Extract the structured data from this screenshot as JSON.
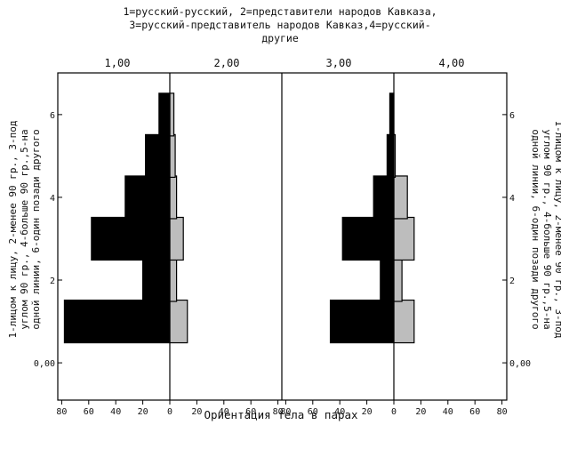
{
  "chart_data": {
    "type": "bar",
    "orientation": "horizontal-mirrored",
    "title_lines": [
      "1=русский-русский, 2=представители народов Кавказа,",
      "3=русский-представитель народов Кавказ,4=русский-",
      "другие"
    ],
    "panel_labels": [
      "1,00",
      "2,00",
      "3,00",
      "4,00"
    ],
    "xlabel": "Ориентация тела в парах",
    "x_ticks": [
      80,
      60,
      40,
      20,
      0,
      20,
      40,
      60,
      80
    ],
    "xlim": [
      -80,
      80
    ],
    "y_ticks": [
      "0,00",
      "2",
      "4",
      "6"
    ],
    "ylim": [
      -0.6,
      6.9
    ],
    "ylabel_lines": [
      "1-лицом к лицу, 2-менее 90 гр., 3-под",
      "углом 90 гр., 4-больше 90 гр.,5-на",
      "одной линии, 6-один позади другого"
    ],
    "categories": [
      1,
      2,
      3,
      4,
      5,
      6
    ],
    "groups": [
      {
        "panels": [
          "1,00",
          "2,00"
        ],
        "series": [
          {
            "name": "1,00",
            "side": "left",
            "color": "#000000",
            "values": [
              78,
              20,
              58,
              33,
              18,
              8
            ]
          },
          {
            "name": "2,00",
            "side": "right",
            "color": "#bdbdbd",
            "values": [
              13,
              5,
              10,
              5,
              4,
              3
            ]
          }
        ]
      },
      {
        "panels": [
          "3,00",
          "4,00"
        ],
        "series": [
          {
            "name": "3,00",
            "side": "left",
            "color": "#000000",
            "values": [
              47,
              10,
              38,
              15,
              5,
              3
            ]
          },
          {
            "name": "4,00",
            "side": "right",
            "color": "#bdbdbd",
            "values": [
              15,
              6,
              15,
              10,
              1,
              0
            ]
          }
        ]
      }
    ],
    "grid": false
  }
}
